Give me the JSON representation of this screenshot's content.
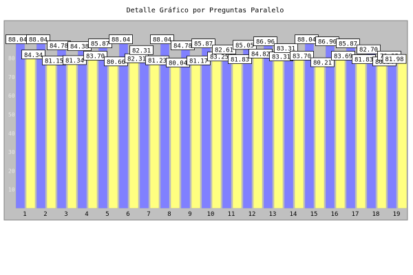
{
  "chart_data": {
    "type": "bar",
    "title": "Detalle Gráfico por Preguntas Paralelo",
    "xlabel": "",
    "ylabel": "",
    "ylim": [
      0,
      100
    ],
    "yticks": [
      10,
      20,
      30,
      40,
      50,
      60,
      70,
      80
    ],
    "grid": false,
    "legend": "none",
    "categories": [
      "1",
      "2",
      "3",
      "4",
      "5",
      "6",
      "7",
      "8",
      "9",
      "10",
      "11",
      "12",
      "13",
      "14",
      "15",
      "16",
      "17",
      "18",
      "19"
    ],
    "series": [
      {
        "color": "#8080ff",
        "values": [
          88.04,
          88.04,
          84.78,
          84.38,
          85.87,
          88.04,
          82.31,
          88.04,
          84.78,
          85.87,
          82.61,
          85.05,
          86.96,
          83.31,
          88.04,
          86.96,
          85.87,
          82.7,
          79.35
        ]
      },
      {
        "color": "#ffff80",
        "values": [
          84.34,
          81.15,
          81.34,
          83.7,
          80.66,
          82.31,
          81.23,
          80.04,
          81.17,
          83.25,
          81.83,
          84.82,
          83.31,
          83.7,
          80.21,
          83.69,
          81.83,
          80.64,
          81.98
        ]
      }
    ]
  },
  "colors": {
    "plot_background": "#c0c0c0",
    "frame": "#808080",
    "bar_outline": "#b0b0b0",
    "highlight_tick_label": "#e0e0e0"
  },
  "highlighted_categories": [
    "13",
    "14",
    "18",
    "19"
  ]
}
